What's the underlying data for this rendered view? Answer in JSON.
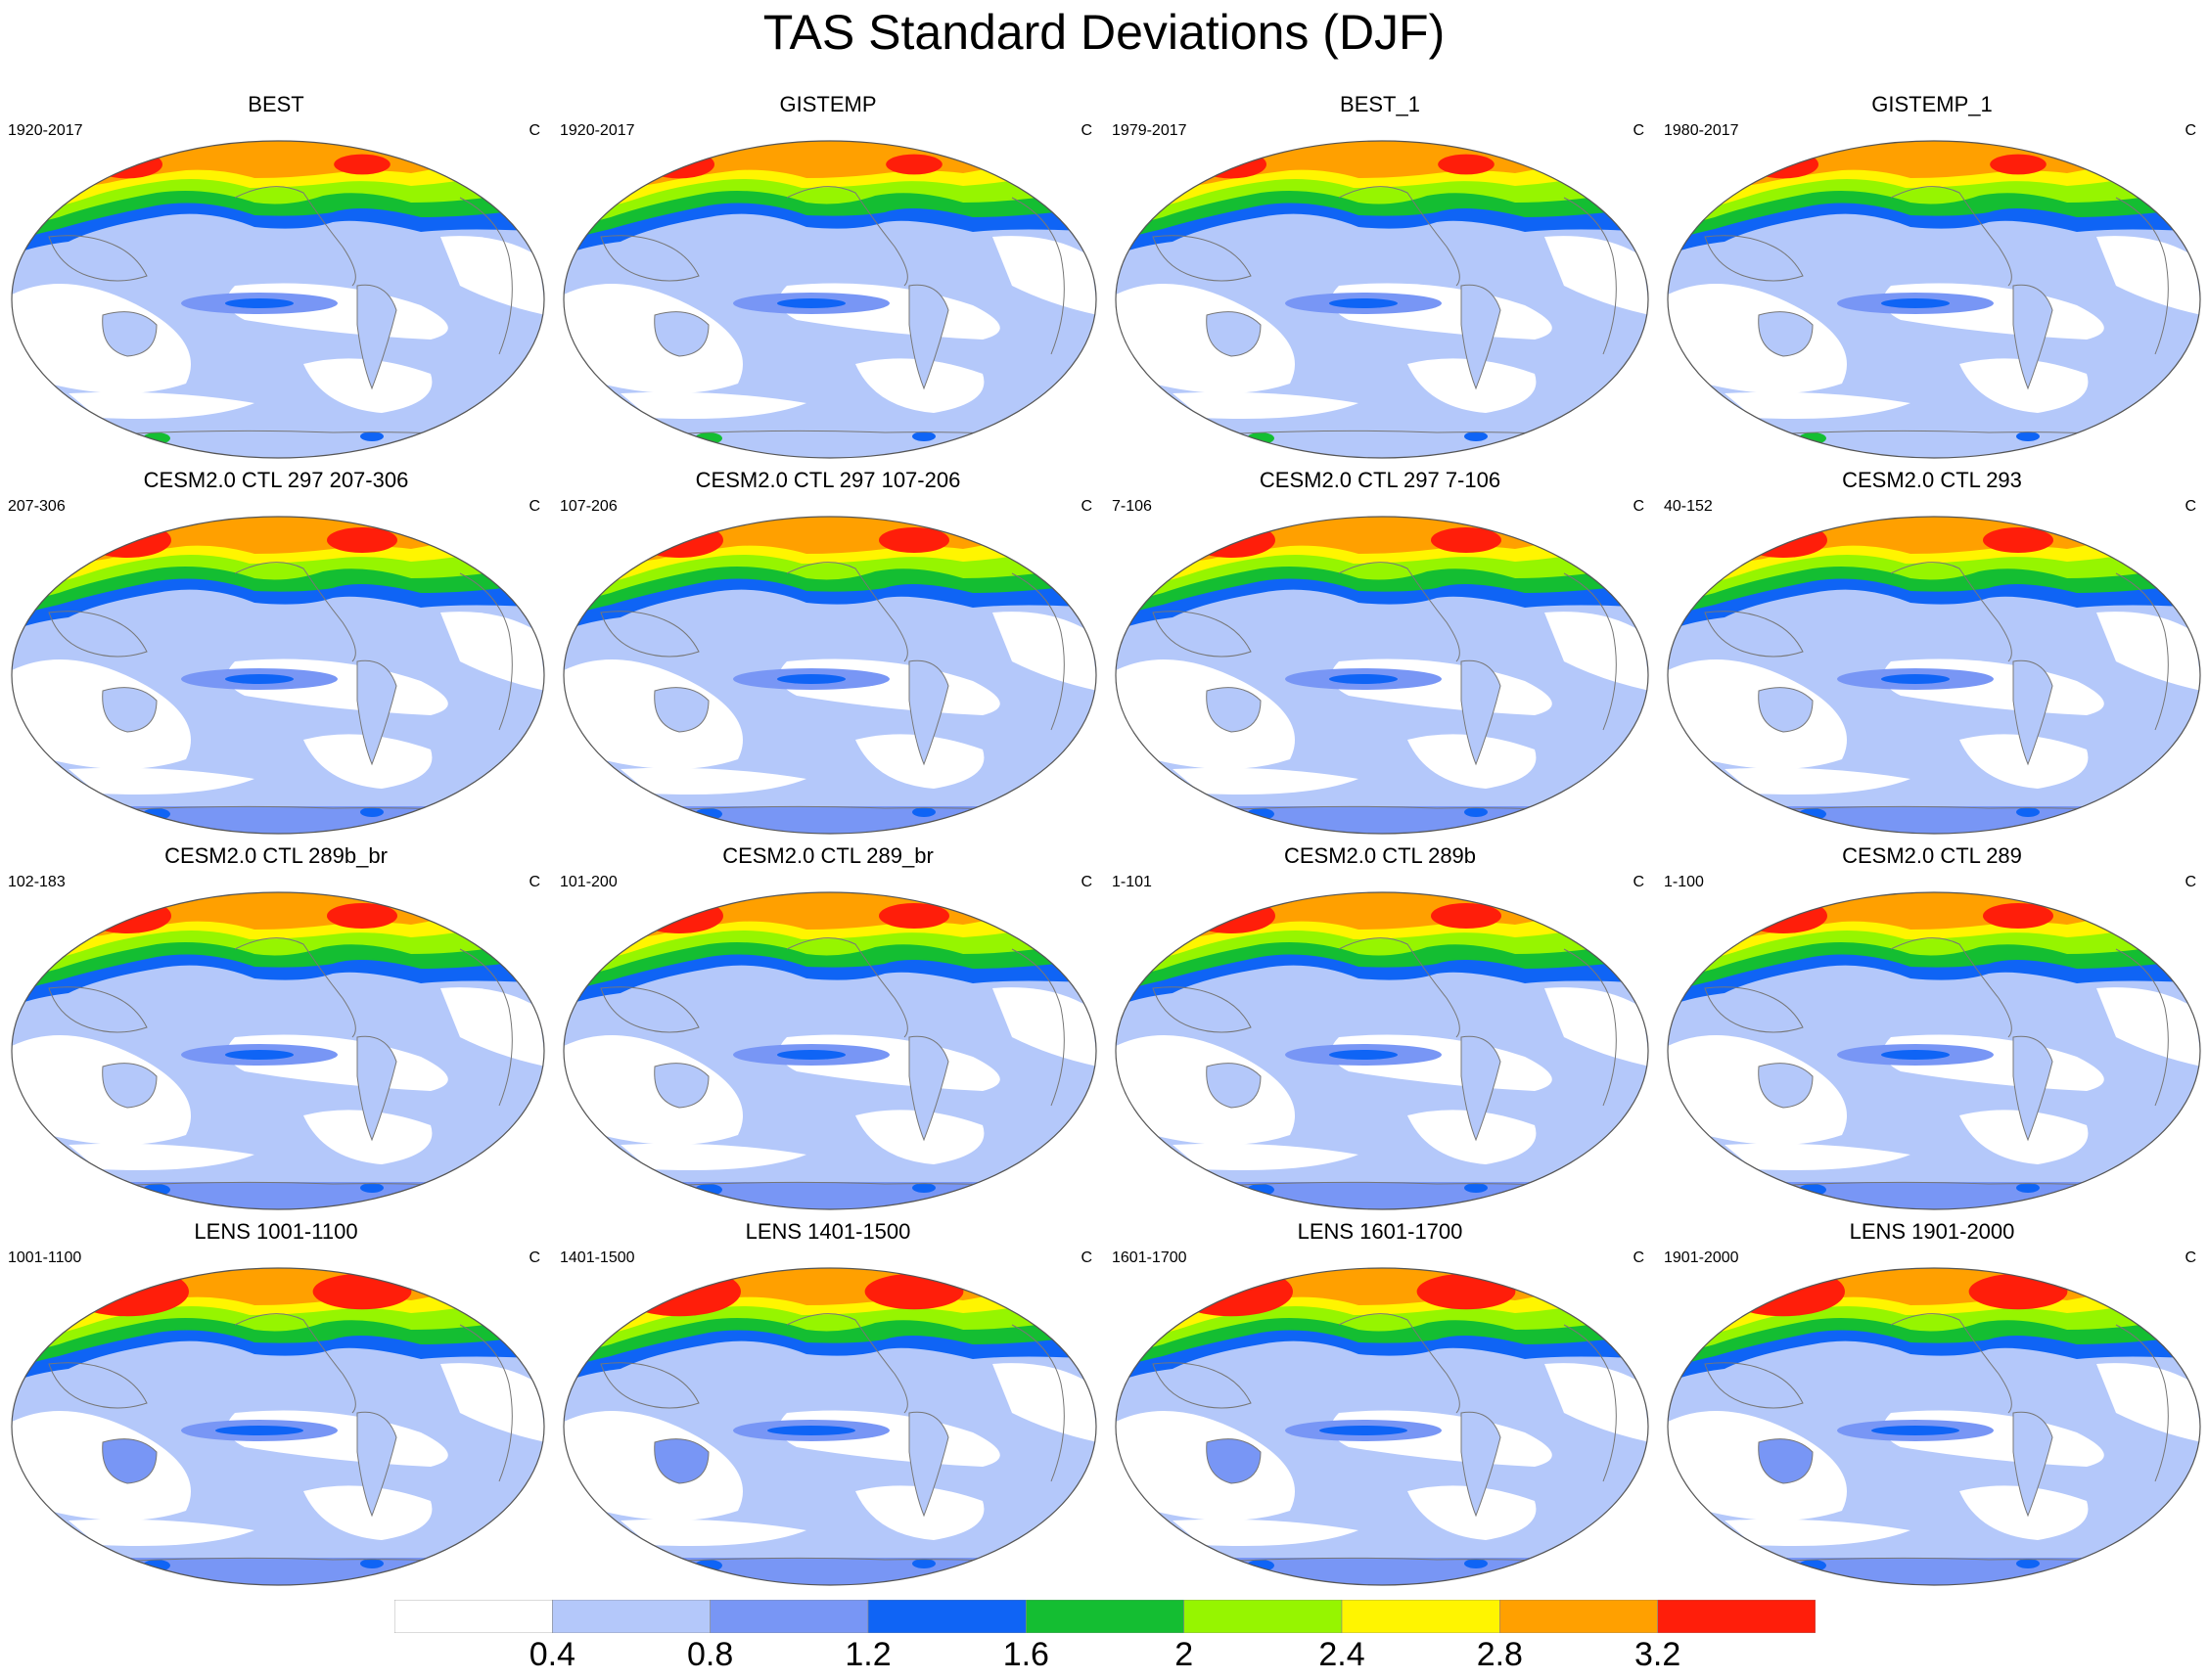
{
  "title": "TAS Standard Deviations (DJF)",
  "units": "C",
  "panels": [
    {
      "title": "BEST",
      "period": "1920-2017",
      "units": "C"
    },
    {
      "title": "GISTEMP",
      "period": "1920-2017",
      "units": "C"
    },
    {
      "title": "BEST_1",
      "period": "1979-2017",
      "units": "C"
    },
    {
      "title": "GISTEMP_1",
      "period": "1980-2017",
      "units": "C"
    },
    {
      "title": "CESM2.0 CTL 297 207-306",
      "period": "207-306",
      "units": "C"
    },
    {
      "title": "CESM2.0 CTL 297 107-206",
      "period": "107-206",
      "units": "C"
    },
    {
      "title": "CESM2.0 CTL 297 7-106",
      "period": "7-106",
      "units": "C"
    },
    {
      "title": "CESM2.0 CTL 293",
      "period": "40-152",
      "units": "C"
    },
    {
      "title": "CESM2.0 CTL 289b_br",
      "period": "102-183",
      "units": "C"
    },
    {
      "title": "CESM2.0 CTL 289_br",
      "period": "101-200",
      "units": "C"
    },
    {
      "title": "CESM2.0 CTL 289b",
      "period": "1-101",
      "units": "C"
    },
    {
      "title": "CESM2.0 CTL 289",
      "period": "1-100",
      "units": "C"
    },
    {
      "title": "LENS 1001-1100",
      "period": "1001-1100",
      "units": "C"
    },
    {
      "title": "LENS 1401-1500",
      "period": "1401-1500",
      "units": "C"
    },
    {
      "title": "LENS 1601-1700",
      "period": "1601-1700",
      "units": "C"
    },
    {
      "title": "LENS 1901-2000",
      "period": "1901-2000",
      "units": "C"
    }
  ],
  "colorbar": {
    "labels": [
      "0.4",
      "0.8",
      "1.2",
      "1.6",
      "2",
      "2.4",
      "2.8",
      "3.2"
    ],
    "colors": [
      "#ffffff",
      "#b4c8fa",
      "#7896f5",
      "#0f64f5",
      "#14be32",
      "#96f500",
      "#fff500",
      "#ffa000",
      "#ff1e0a"
    ]
  },
  "colors": {
    "ocean_low": "#ffffff",
    "level_04_08": "#b4c8fa",
    "level_08_12": "#7896f5",
    "level_12_16": "#0f64f5",
    "level_16_20": "#14be32",
    "level_20_24": "#96f500",
    "level_24_28": "#fff500",
    "level_28_32": "#ffa000",
    "level_32_up": "#ff1e0a",
    "coastline": "#777777"
  }
}
